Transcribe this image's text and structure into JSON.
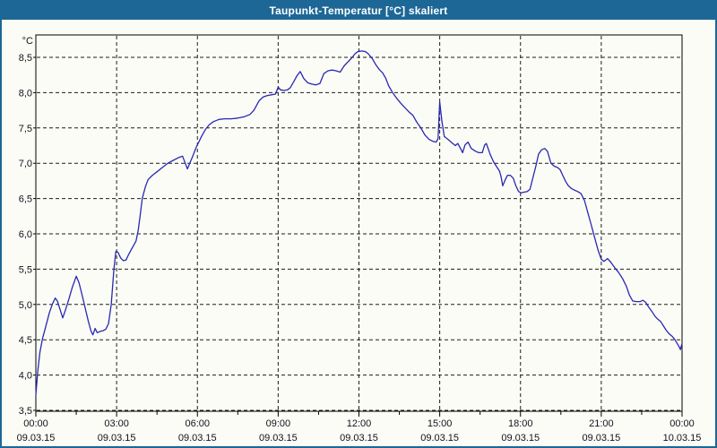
{
  "window": {
    "title": "Taupunkt-Temperatur [°C] skaliert",
    "colors": {
      "titlebar_bg": "#1d6796",
      "titlebar_text": "#ffffff",
      "frame_border": "#1d6796",
      "content_bg": "#fcfcf6",
      "grid": "#1c1c1c",
      "axis": "#000000",
      "line": "#2828b4",
      "label_text": "#12121c"
    }
  },
  "chart_data": {
    "type": "line",
    "title": "Taupunkt-Temperatur [°C] skaliert",
    "ylabel": "°C",
    "xlabel": "",
    "ylim": [
      3.5,
      8.8
    ],
    "xlim_hours": [
      0,
      24
    ],
    "grid": "dashed",
    "legend": "none",
    "y_ticks": [
      {
        "value": 8.5,
        "label": "8,5"
      },
      {
        "value": 8.0,
        "label": "8,0"
      },
      {
        "value": 7.5,
        "label": "7,5"
      },
      {
        "value": 7.0,
        "label": "7,0"
      },
      {
        "value": 6.5,
        "label": "6,5"
      },
      {
        "value": 6.0,
        "label": "6,0"
      },
      {
        "value": 5.5,
        "label": "5,5"
      },
      {
        "value": 5.0,
        "label": "5,0"
      },
      {
        "value": 4.5,
        "label": "4,5"
      },
      {
        "value": 4.0,
        "label": "4,0"
      },
      {
        "value": 3.5,
        "label": "3,5"
      }
    ],
    "x_ticks": [
      {
        "hour": 0,
        "time": "00:00",
        "date": "09.03.15"
      },
      {
        "hour": 3,
        "time": "03:00",
        "date": "09.03.15"
      },
      {
        "hour": 6,
        "time": "06:00",
        "date": "09.03.15"
      },
      {
        "hour": 9,
        "time": "09:00",
        "date": "09.03.15"
      },
      {
        "hour": 12,
        "time": "12:00",
        "date": "09.03.15"
      },
      {
        "hour": 15,
        "time": "15:00",
        "date": "09.03.15"
      },
      {
        "hour": 18,
        "time": "18:00",
        "date": "09.03.15"
      },
      {
        "hour": 21,
        "time": "21:00",
        "date": "09.03.15"
      },
      {
        "hour": 24,
        "time": "00:00",
        "date": "10.03.15"
      }
    ],
    "x_minor_tick_hours": [
      1.5,
      4.5,
      7.5,
      10.5,
      13.5,
      16.5,
      19.5,
      22.5
    ],
    "series": [
      {
        "name": "Taupunkt-Temperatur",
        "color": "#2828b4",
        "points_hour_value": [
          [
            0.0,
            3.72
          ],
          [
            0.07,
            4.05
          ],
          [
            0.15,
            4.32
          ],
          [
            0.25,
            4.52
          ],
          [
            0.35,
            4.66
          ],
          [
            0.5,
            4.88
          ],
          [
            0.62,
            5.01
          ],
          [
            0.72,
            5.09
          ],
          [
            0.8,
            5.05
          ],
          [
            0.9,
            4.93
          ],
          [
            1.0,
            4.81
          ],
          [
            1.1,
            4.92
          ],
          [
            1.22,
            5.07
          ],
          [
            1.35,
            5.24
          ],
          [
            1.5,
            5.4
          ],
          [
            1.6,
            5.31
          ],
          [
            1.72,
            5.13
          ],
          [
            1.85,
            4.92
          ],
          [
            1.95,
            4.76
          ],
          [
            2.05,
            4.62
          ],
          [
            2.12,
            4.57
          ],
          [
            2.2,
            4.66
          ],
          [
            2.28,
            4.6
          ],
          [
            2.4,
            4.62
          ],
          [
            2.5,
            4.63
          ],
          [
            2.6,
            4.65
          ],
          [
            2.7,
            4.73
          ],
          [
            2.8,
            5.0
          ],
          [
            2.9,
            5.5
          ],
          [
            2.97,
            5.75
          ],
          [
            3.05,
            5.74
          ],
          [
            3.15,
            5.66
          ],
          [
            3.25,
            5.62
          ],
          [
            3.35,
            5.63
          ],
          [
            3.45,
            5.71
          ],
          [
            3.55,
            5.78
          ],
          [
            3.65,
            5.85
          ],
          [
            3.72,
            5.9
          ],
          [
            3.8,
            6.05
          ],
          [
            3.88,
            6.28
          ],
          [
            3.95,
            6.5
          ],
          [
            4.07,
            6.67
          ],
          [
            4.17,
            6.77
          ],
          [
            4.33,
            6.83
          ],
          [
            4.5,
            6.88
          ],
          [
            4.7,
            6.94
          ],
          [
            4.9,
            7.0
          ],
          [
            5.1,
            7.04
          ],
          [
            5.3,
            7.08
          ],
          [
            5.45,
            7.1
          ],
          [
            5.55,
            7.0
          ],
          [
            5.63,
            6.92
          ],
          [
            5.73,
            7.01
          ],
          [
            5.85,
            7.12
          ],
          [
            5.95,
            7.22
          ],
          [
            6.05,
            7.3
          ],
          [
            6.15,
            7.38
          ],
          [
            6.3,
            7.48
          ],
          [
            6.45,
            7.55
          ],
          [
            6.6,
            7.59
          ],
          [
            6.8,
            7.62
          ],
          [
            7.0,
            7.63
          ],
          [
            7.25,
            7.63
          ],
          [
            7.5,
            7.64
          ],
          [
            7.75,
            7.66
          ],
          [
            7.95,
            7.69
          ],
          [
            8.1,
            7.75
          ],
          [
            8.2,
            7.82
          ],
          [
            8.3,
            7.89
          ],
          [
            8.45,
            7.94
          ],
          [
            8.6,
            7.96
          ],
          [
            8.75,
            7.97
          ],
          [
            8.9,
            7.98
          ],
          [
            9.0,
            8.08
          ],
          [
            9.08,
            8.04
          ],
          [
            9.22,
            8.03
          ],
          [
            9.35,
            8.04
          ],
          [
            9.45,
            8.07
          ],
          [
            9.57,
            8.15
          ],
          [
            9.7,
            8.24
          ],
          [
            9.82,
            8.3
          ],
          [
            9.95,
            8.2
          ],
          [
            10.1,
            8.14
          ],
          [
            10.25,
            8.12
          ],
          [
            10.4,
            8.11
          ],
          [
            10.55,
            8.13
          ],
          [
            10.7,
            8.27
          ],
          [
            10.85,
            8.31
          ],
          [
            11.0,
            8.32
          ],
          [
            11.15,
            8.31
          ],
          [
            11.3,
            8.29
          ],
          [
            11.45,
            8.38
          ],
          [
            11.6,
            8.44
          ],
          [
            11.75,
            8.5
          ],
          [
            11.85,
            8.55
          ],
          [
            11.95,
            8.58
          ],
          [
            12.1,
            8.59
          ],
          [
            12.25,
            8.58
          ],
          [
            12.35,
            8.55
          ],
          [
            12.5,
            8.48
          ],
          [
            12.62,
            8.4
          ],
          [
            12.75,
            8.33
          ],
          [
            12.88,
            8.28
          ],
          [
            13.0,
            8.2
          ],
          [
            13.1,
            8.1
          ],
          [
            13.25,
            8.0
          ],
          [
            13.4,
            7.92
          ],
          [
            13.55,
            7.85
          ],
          [
            13.7,
            7.79
          ],
          [
            13.85,
            7.73
          ],
          [
            14.0,
            7.68
          ],
          [
            14.15,
            7.58
          ],
          [
            14.3,
            7.5
          ],
          [
            14.45,
            7.4
          ],
          [
            14.6,
            7.34
          ],
          [
            14.75,
            7.31
          ],
          [
            14.87,
            7.3
          ],
          [
            14.94,
            7.35
          ],
          [
            15.0,
            7.87
          ],
          [
            15.08,
            7.6
          ],
          [
            15.17,
            7.38
          ],
          [
            15.3,
            7.34
          ],
          [
            15.45,
            7.29
          ],
          [
            15.58,
            7.25
          ],
          [
            15.67,
            7.28
          ],
          [
            15.77,
            7.21
          ],
          [
            15.85,
            7.15
          ],
          [
            15.94,
            7.26
          ],
          [
            16.05,
            7.3
          ],
          [
            16.17,
            7.21
          ],
          [
            16.33,
            7.17
          ],
          [
            16.45,
            7.15
          ],
          [
            16.58,
            7.15
          ],
          [
            16.67,
            7.26
          ],
          [
            16.73,
            7.28
          ],
          [
            16.88,
            7.12
          ],
          [
            17.0,
            7.02
          ],
          [
            17.1,
            6.96
          ],
          [
            17.22,
            6.89
          ],
          [
            17.28,
            6.81
          ],
          [
            17.34,
            6.68
          ],
          [
            17.44,
            6.77
          ],
          [
            17.52,
            6.83
          ],
          [
            17.62,
            6.83
          ],
          [
            17.73,
            6.79
          ],
          [
            17.83,
            6.68
          ],
          [
            17.93,
            6.6
          ],
          [
            18.02,
            6.58
          ],
          [
            18.12,
            6.59
          ],
          [
            18.25,
            6.6
          ],
          [
            18.35,
            6.63
          ],
          [
            18.45,
            6.78
          ],
          [
            18.57,
            6.96
          ],
          [
            18.67,
            7.13
          ],
          [
            18.78,
            7.19
          ],
          [
            18.9,
            7.21
          ],
          [
            19.0,
            7.17
          ],
          [
            19.07,
            7.08
          ],
          [
            19.13,
            7.0
          ],
          [
            19.25,
            6.96
          ],
          [
            19.37,
            6.94
          ],
          [
            19.47,
            6.91
          ],
          [
            19.58,
            6.82
          ],
          [
            19.68,
            6.74
          ],
          [
            19.78,
            6.68
          ],
          [
            19.9,
            6.64
          ],
          [
            20.0,
            6.62
          ],
          [
            20.12,
            6.6
          ],
          [
            20.25,
            6.57
          ],
          [
            20.38,
            6.47
          ],
          [
            20.5,
            6.3
          ],
          [
            20.63,
            6.12
          ],
          [
            20.75,
            5.95
          ],
          [
            20.88,
            5.77
          ],
          [
            21.0,
            5.64
          ],
          [
            21.1,
            5.61
          ],
          [
            21.23,
            5.65
          ],
          [
            21.35,
            5.6
          ],
          [
            21.5,
            5.52
          ],
          [
            21.65,
            5.45
          ],
          [
            21.8,
            5.36
          ],
          [
            21.93,
            5.26
          ],
          [
            22.05,
            5.13
          ],
          [
            22.17,
            5.05
          ],
          [
            22.3,
            5.04
          ],
          [
            22.45,
            5.04
          ],
          [
            22.55,
            5.06
          ],
          [
            22.65,
            5.03
          ],
          [
            22.75,
            4.97
          ],
          [
            22.88,
            4.9
          ],
          [
            23.0,
            4.83
          ],
          [
            23.1,
            4.79
          ],
          [
            23.2,
            4.76
          ],
          [
            23.3,
            4.7
          ],
          [
            23.42,
            4.63
          ],
          [
            23.53,
            4.58
          ],
          [
            23.63,
            4.55
          ],
          [
            23.72,
            4.51
          ],
          [
            23.8,
            4.46
          ],
          [
            23.88,
            4.41
          ],
          [
            23.94,
            4.36
          ],
          [
            24.0,
            4.45
          ]
        ]
      }
    ]
  }
}
